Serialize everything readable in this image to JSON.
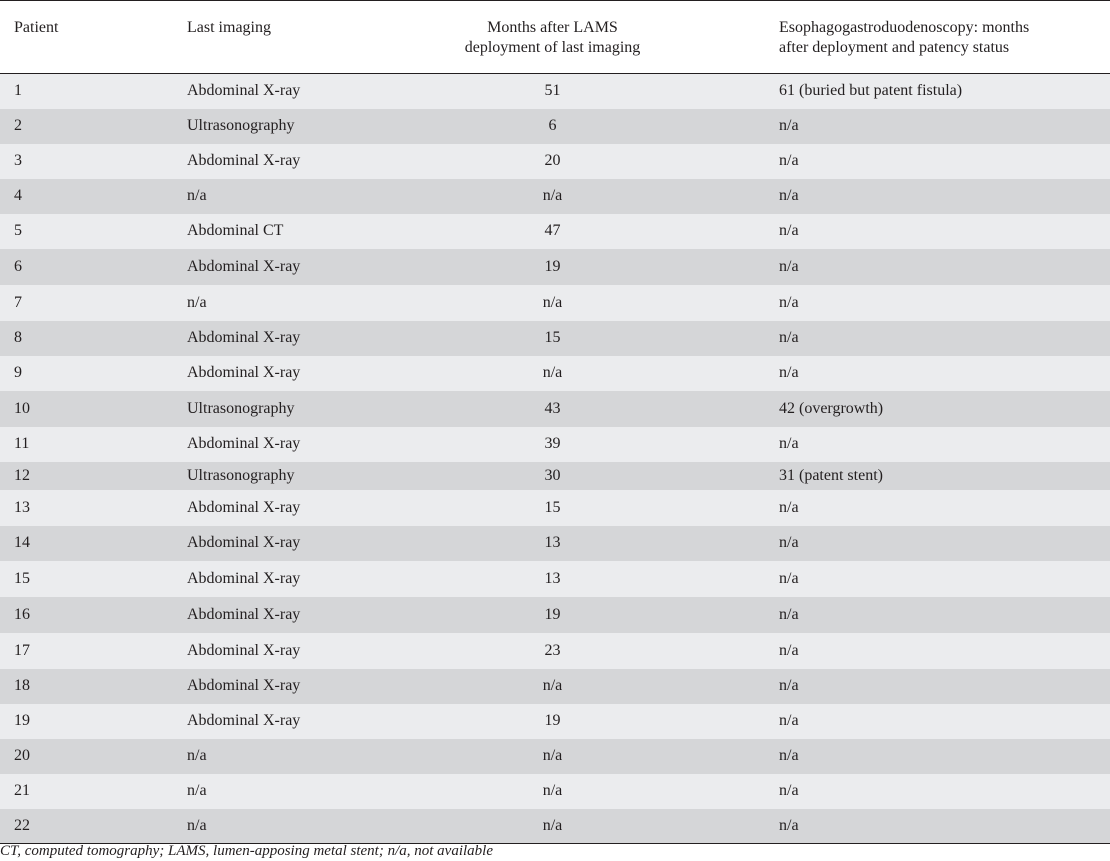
{
  "table": {
    "headers": [
      "Patient",
      "Last imaging",
      "Months after LAMS\ndeployment of last imaging",
      "Esophagogastroduodenoscopy: months\nafter deployment and patency status"
    ],
    "rows": [
      [
        "1",
        "Abdominal X-ray",
        "51",
        "61 (buried but patent fistula)"
      ],
      [
        "2",
        "Ultrasonography",
        "6",
        "n/a"
      ],
      [
        "3",
        "Abdominal X-ray",
        "20",
        "n/a"
      ],
      [
        "4",
        "n/a",
        "n/a",
        "n/a"
      ],
      [
        "5",
        "Abdominal CT",
        "47",
        "n/a"
      ],
      [
        "6",
        "Abdominal X-ray",
        "19",
        "n/a"
      ],
      [
        "7",
        "n/a",
        "n/a",
        "n/a"
      ],
      [
        "8",
        "Abdominal X-ray",
        "15",
        "n/a"
      ],
      [
        "9",
        "Abdominal X-ray",
        "n/a",
        "n/a"
      ],
      [
        "10",
        "Ultrasonography",
        "43",
        "42 (overgrowth)"
      ],
      [
        "11",
        "Abdominal X-ray",
        "39",
        "n/a"
      ],
      [
        "12",
        "Ultrasonography",
        "30",
        "31 (patent stent)"
      ],
      [
        "13",
        "Abdominal X-ray",
        "15",
        "n/a"
      ],
      [
        "14",
        "Abdominal X-ray",
        "13",
        "n/a"
      ],
      [
        "15",
        "Abdominal X-ray",
        "13",
        "n/a"
      ],
      [
        "16",
        "Abdominal X-ray",
        "19",
        "n/a"
      ],
      [
        "17",
        "Abdominal X-ray",
        "23",
        "n/a"
      ],
      [
        "18",
        "Abdominal X-ray",
        "n/a",
        "n/a"
      ],
      [
        "19",
        "Abdominal X-ray",
        "19",
        "n/a"
      ],
      [
        "20",
        "n/a",
        "n/a",
        "n/a"
      ],
      [
        "21",
        "n/a",
        "n/a",
        "n/a"
      ],
      [
        "22",
        "n/a",
        "n/a",
        "n/a"
      ]
    ]
  },
  "footnote": "CT, computed tomography; LAMS, lumen-apposing metal stent; n/a, not available",
  "colors": {
    "row_light": "#ebecee",
    "row_dark": "#d5d6d8",
    "text": "#231f20"
  }
}
